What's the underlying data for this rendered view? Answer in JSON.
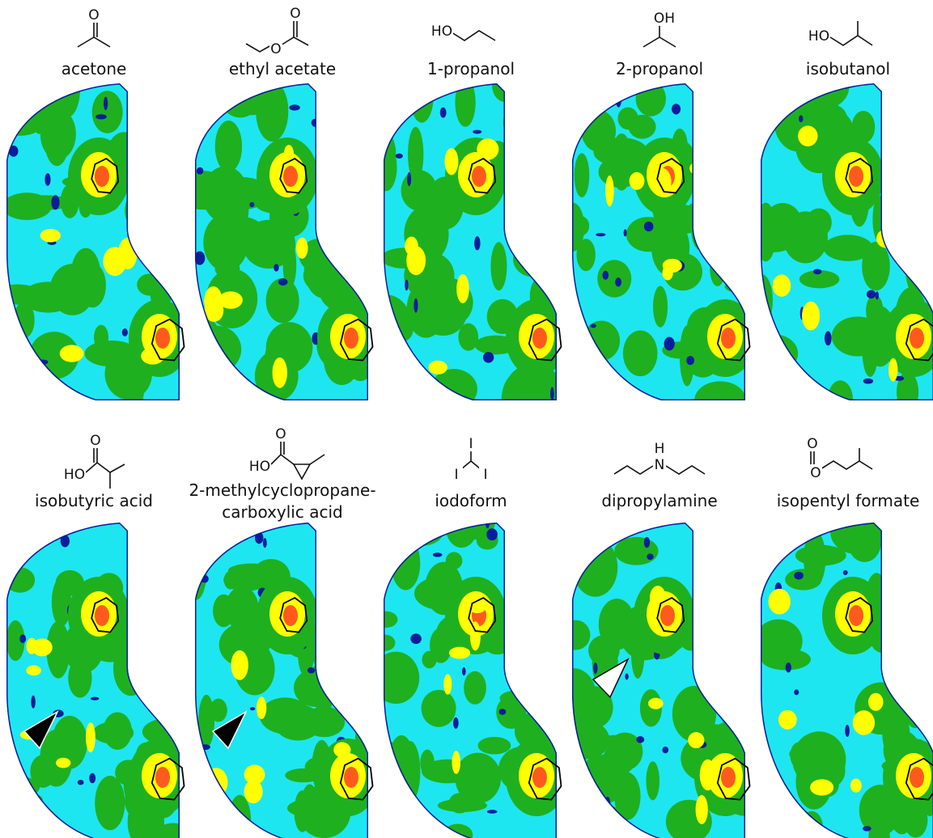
{
  "panels": [
    {
      "name": [
        "acetone"
      ],
      "atoms": [
        "O"
      ]
    },
    {
      "name": [
        "ethyl acetate"
      ],
      "atoms": [
        "O",
        "O"
      ]
    },
    {
      "name": [
        "1-propanol"
      ],
      "atoms": [
        "HO"
      ]
    },
    {
      "name": [
        "2-propanol"
      ],
      "atoms": [
        "OH"
      ]
    },
    {
      "name": [
        "isobutanol"
      ],
      "atoms": [
        "HO"
      ]
    },
    {
      "name": [
        "isobutyric acid"
      ],
      "atoms": [
        "O",
        "HO"
      ]
    },
    {
      "name": [
        "2-methylcyclopropane-",
        "carboxylic acid"
      ],
      "atoms": [
        "O",
        "HO"
      ]
    },
    {
      "name": [
        "iodoform"
      ],
      "atoms": [
        "I",
        "I",
        "I"
      ]
    },
    {
      "name": [
        "dipropylamine"
      ],
      "atoms": [
        "H",
        "N"
      ]
    },
    {
      "name": [
        "isopentyl formate"
      ],
      "atoms": [
        "O",
        "O"
      ]
    }
  ]
}
